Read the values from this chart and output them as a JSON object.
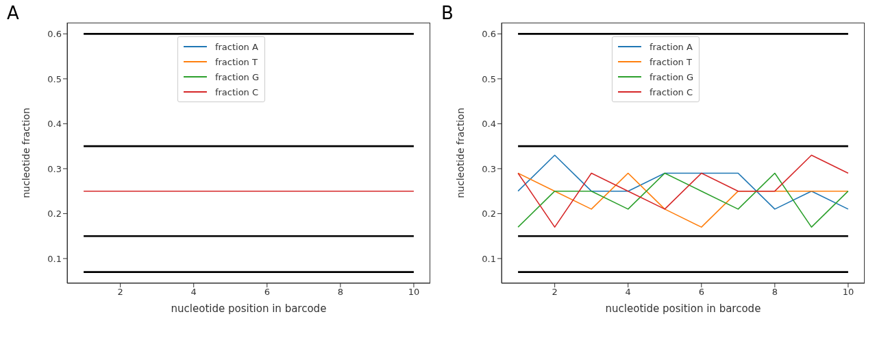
{
  "chart_data": [
    {
      "type": "line",
      "annotations": [
        "A"
      ],
      "xlabel": "nucleotide position in barcode",
      "ylabel": "nucleotide fraction",
      "xlim": [
        0.55,
        10.45
      ],
      "xticks": [
        2,
        4,
        6,
        8,
        10
      ],
      "ylim": [
        0.045,
        0.625
      ],
      "yticks": [
        0.1,
        0.2,
        0.3,
        0.4,
        0.5,
        0.6
      ],
      "grid": false,
      "legend": "top",
      "marker": "none",
      "line_style": "solid",
      "x": [
        1,
        2,
        3,
        4,
        5,
        6,
        7,
        8,
        9,
        10
      ],
      "series": [
        {
          "color": "#000000",
          "values": [
            0.6,
            0.6,
            0.6,
            0.6,
            0.6,
            0.6,
            0.6,
            0.6,
            0.6,
            0.6
          ]
        },
        {
          "color": "#000000",
          "values": [
            0.35,
            0.35,
            0.35,
            0.35,
            0.35,
            0.35,
            0.35,
            0.35,
            0.35,
            0.35
          ]
        },
        {
          "color": "#000000",
          "values": [
            0.15,
            0.15,
            0.15,
            0.15,
            0.15,
            0.15,
            0.15,
            0.15,
            0.15,
            0.15
          ]
        },
        {
          "color": "#000000",
          "values": [
            0.07,
            0.07,
            0.07,
            0.07,
            0.07,
            0.07,
            0.07,
            0.07,
            0.07,
            0.07
          ]
        },
        {
          "name": "fraction A",
          "color": "#1f77b4",
          "values": [
            null,
            null,
            null,
            null,
            null,
            null,
            null,
            null,
            null,
            null
          ]
        },
        {
          "name": "fraction T",
          "color": "#ff7f0e",
          "values": [
            null,
            null,
            null,
            null,
            null,
            null,
            null,
            null,
            null,
            null
          ]
        },
        {
          "name": "fraction G",
          "color": "#2ca02c",
          "values": [
            null,
            null,
            null,
            null,
            null,
            null,
            null,
            null,
            null,
            null
          ]
        },
        {
          "name": "fraction C",
          "color": "#d62728",
          "values": [
            0.25,
            0.25,
            0.25,
            0.25,
            0.25,
            0.25,
            0.25,
            0.25,
            0.25,
            0.25
          ]
        }
      ]
    },
    {
      "type": "line",
      "annotations": [
        "B"
      ],
      "xlabel": "nucleotide position in barcode",
      "ylabel": "nucleotide fraction",
      "xlim": [
        0.55,
        10.45
      ],
      "xticks": [
        2,
        4,
        6,
        8,
        10
      ],
      "ylim": [
        0.045,
        0.625
      ],
      "yticks": [
        0.1,
        0.2,
        0.3,
        0.4,
        0.5,
        0.6
      ],
      "grid": false,
      "legend": "top",
      "marker": "none",
      "line_style": "solid",
      "x": [
        1,
        2,
        3,
        4,
        5,
        6,
        7,
        8,
        9,
        10
      ],
      "series": [
        {
          "color": "#000000",
          "values": [
            0.6,
            0.6,
            0.6,
            0.6,
            0.6,
            0.6,
            0.6,
            0.6,
            0.6,
            0.6
          ]
        },
        {
          "color": "#000000",
          "values": [
            0.35,
            0.35,
            0.35,
            0.35,
            0.35,
            0.35,
            0.35,
            0.35,
            0.35,
            0.35
          ]
        },
        {
          "color": "#000000",
          "values": [
            0.15,
            0.15,
            0.15,
            0.15,
            0.15,
            0.15,
            0.15,
            0.15,
            0.15,
            0.15
          ]
        },
        {
          "color": "#000000",
          "values": [
            0.07,
            0.07,
            0.07,
            0.07,
            0.07,
            0.07,
            0.07,
            0.07,
            0.07,
            0.07
          ]
        },
        {
          "name": "fraction A",
          "color": "#1f77b4",
          "values": [
            0.25,
            0.33,
            0.25,
            0.25,
            0.29,
            0.29,
            0.29,
            0.21,
            0.25,
            0.21
          ]
        },
        {
          "name": "fraction T",
          "color": "#ff7f0e",
          "values": [
            0.29,
            0.25,
            0.21,
            0.29,
            0.21,
            0.17,
            0.25,
            0.25,
            0.25,
            0.25
          ]
        },
        {
          "name": "fraction G",
          "color": "#2ca02c",
          "values": [
            0.17,
            0.25,
            0.25,
            0.21,
            0.29,
            0.25,
            0.21,
            0.29,
            0.17,
            0.25
          ]
        },
        {
          "name": "fraction C",
          "color": "#d62728",
          "values": [
            0.29,
            0.17,
            0.29,
            0.25,
            0.21,
            0.29,
            0.25,
            0.25,
            0.33,
            0.29
          ]
        }
      ]
    }
  ]
}
